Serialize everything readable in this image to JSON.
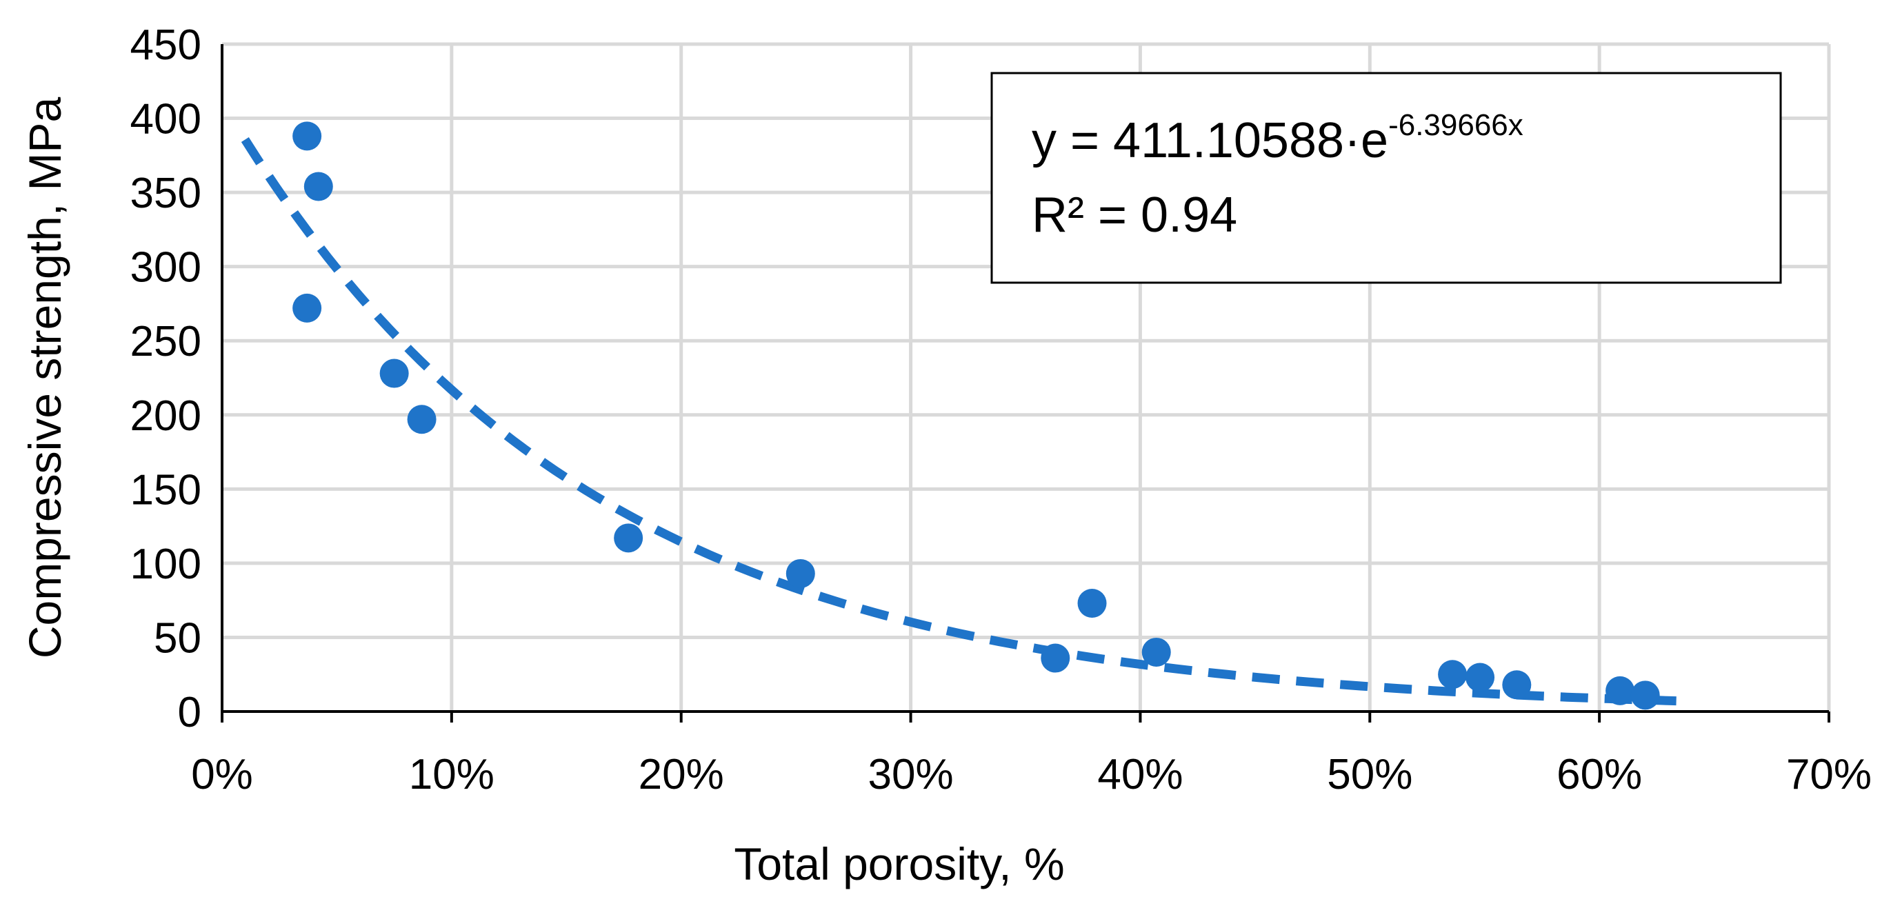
{
  "chart_data": {
    "type": "scatter",
    "xlabel": "Total porosity, %",
    "ylabel": "Compressive strength, MPa",
    "xlim": [
      0,
      0.7
    ],
    "ylim": [
      0,
      450
    ],
    "x_ticks": [
      0,
      0.1,
      0.2,
      0.3,
      0.4,
      0.5,
      0.6,
      0.7
    ],
    "x_tick_labels": [
      "0%",
      "10%",
      "20%",
      "30%",
      "40%",
      "50%",
      "60%",
      "70%"
    ],
    "y_ticks": [
      0,
      50,
      100,
      150,
      200,
      250,
      300,
      350,
      400,
      450
    ],
    "y_tick_labels": [
      "0",
      "50",
      "100",
      "150",
      "200",
      "250",
      "300",
      "350",
      "400",
      "450"
    ],
    "grid": true,
    "marker_color": "#1f74c9",
    "trend_color": "#1f74c9",
    "series": [
      {
        "points": [
          {
            "x": 0.037,
            "y": 388
          },
          {
            "x": 0.042,
            "y": 354
          },
          {
            "x": 0.037,
            "y": 272
          },
          {
            "x": 0.075,
            "y": 228
          },
          {
            "x": 0.087,
            "y": 197
          },
          {
            "x": 0.177,
            "y": 117
          },
          {
            "x": 0.252,
            "y": 93
          },
          {
            "x": 0.363,
            "y": 36
          },
          {
            "x": 0.379,
            "y": 73
          },
          {
            "x": 0.407,
            "y": 40
          },
          {
            "x": 0.536,
            "y": 25
          },
          {
            "x": 0.548,
            "y": 23
          },
          {
            "x": 0.564,
            "y": 18
          },
          {
            "x": 0.609,
            "y": 14
          },
          {
            "x": 0.62,
            "y": 11
          }
        ]
      }
    ],
    "trendline": {
      "type": "exponential",
      "a": 411.10588,
      "b": -6.39666,
      "x_range": [
        0.01,
        0.64
      ],
      "style": "dashed"
    },
    "annotation": {
      "eq_main": "y = 411.10588·e",
      "eq_exp": "-6.39666x",
      "r2": "R² = 0.94"
    }
  }
}
